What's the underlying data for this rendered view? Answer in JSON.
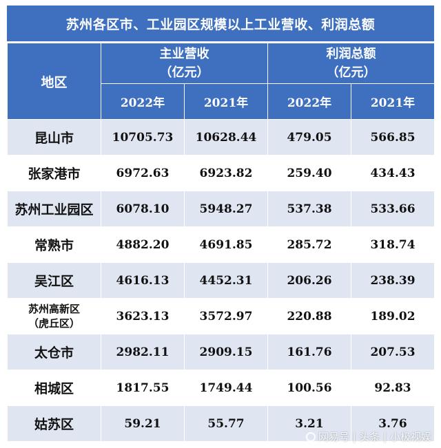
{
  "title": "苏州各区市、工业园区规模以上工业营收、利润总额",
  "header": {
    "region": "地区",
    "revenue_group": "主业营收",
    "revenue_unit": "（亿元）",
    "profit_group": "利润总额",
    "profit_unit": "（亿元）",
    "years": [
      "2022年",
      "2021年",
      "2022年",
      "2021年"
    ]
  },
  "rows": [
    {
      "region": "昆山市",
      "rev_2022": "10705.73",
      "rev_2021": "10628.44",
      "profit_2022": "479.05",
      "profit_2021": "566.85"
    },
    {
      "region": "张家港市",
      "rev_2022": "6972.63",
      "rev_2021": "6923.82",
      "profit_2022": "259.40",
      "profit_2021": "434.43"
    },
    {
      "region": "苏州工业园区",
      "rev_2022": "6078.10",
      "rev_2021": "5948.27",
      "profit_2022": "537.38",
      "profit_2021": "533.66"
    },
    {
      "region": "常熟市",
      "rev_2022": "4882.20",
      "rev_2021": "4691.85",
      "profit_2022": "285.72",
      "profit_2021": "318.74"
    },
    {
      "region": "吴江区",
      "rev_2022": "4616.13",
      "rev_2021": "4452.31",
      "profit_2022": "206.26",
      "profit_2021": "238.39"
    },
    {
      "region": "苏州高新区",
      "region_line2": "（虎丘区）",
      "rev_2022": "3623.13",
      "rev_2021": "3572.97",
      "profit_2022": "220.88",
      "profit_2021": "189.02"
    },
    {
      "region": "太仓市",
      "rev_2022": "2982.11",
      "rev_2021": "2909.15",
      "profit_2022": "161.76",
      "profit_2021": "207.53"
    },
    {
      "region": "相城区",
      "rev_2022": "1817.55",
      "rev_2021": "1749.44",
      "profit_2022": "100.56",
      "profit_2021": "92.83"
    },
    {
      "region": "姑苏区",
      "rev_2022": "59.21",
      "rev_2021": "55.77",
      "profit_2022": "3.21",
      "profit_2021": "3.76"
    }
  ],
  "watermark": "网易号 | 头条 | 小极视娱",
  "colors": {
    "header_blue": "#3f6fbf",
    "row_shade": "#dfe6f2",
    "row_white": "#ffffff"
  }
}
